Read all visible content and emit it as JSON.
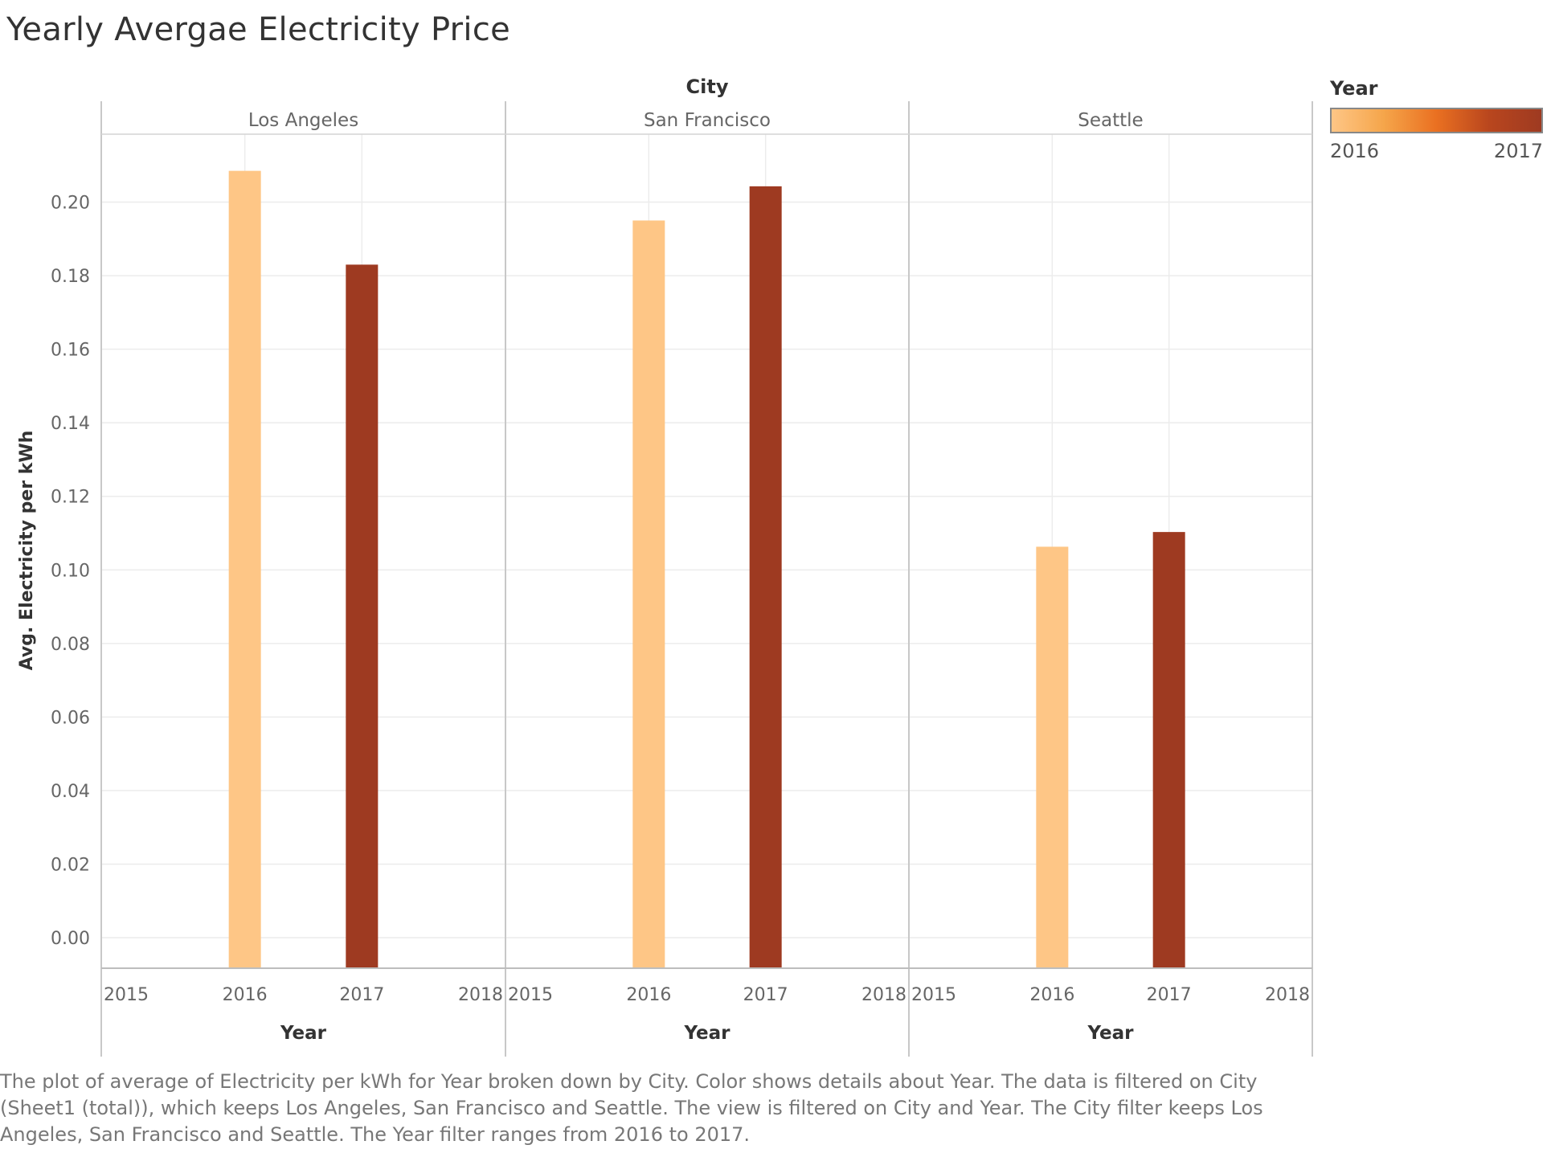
{
  "chart_data": {
    "type": "bar",
    "title": "Yearly Avergae Electricity Price",
    "column_header": "City",
    "ylabel": "Avg. Electricity per kWh",
    "xlabel": "Year",
    "ylim": [
      0,
      0.22
    ],
    "yticks": [
      "0.00",
      "0.02",
      "0.04",
      "0.06",
      "0.08",
      "0.10",
      "0.12",
      "0.14",
      "0.16",
      "0.18",
      "0.20"
    ],
    "xticks": [
      "2015",
      "2016",
      "2017",
      "2018"
    ],
    "panels": [
      {
        "name": "Los Angeles",
        "bars": [
          {
            "year": 2016,
            "value": 0.2085
          },
          {
            "year": 2017,
            "value": 0.183
          }
        ]
      },
      {
        "name": "San Francisco",
        "bars": [
          {
            "year": 2016,
            "value": 0.195
          },
          {
            "year": 2017,
            "value": 0.2043
          }
        ]
      },
      {
        "name": "Seattle",
        "bars": [
          {
            "year": 2016,
            "value": 0.1063
          },
          {
            "year": 2017,
            "value": 0.1103
          }
        ]
      }
    ],
    "grid": true,
    "legend_placement": "top-right",
    "legend": {
      "title": "Year",
      "min_label": "2016",
      "max_label": "2017"
    },
    "colors": {
      "2016": "#fec686",
      "2017": "#9e3a21",
      "ramp": [
        "#fec686",
        "#f5a54a",
        "#ea7021",
        "#b9461e",
        "#9e3a21"
      ]
    }
  },
  "caption": "The plot of average of Electricity per kWh for Year broken down by City.  Color shows details about Year. The data is filtered on City (Sheet1 (total)), which keeps Los Angeles, San Francisco and Seattle. The view is filtered on City and Year. The City filter keeps Los Angeles, San Francisco and Seattle. The Year filter ranges from 2016 to 2017."
}
